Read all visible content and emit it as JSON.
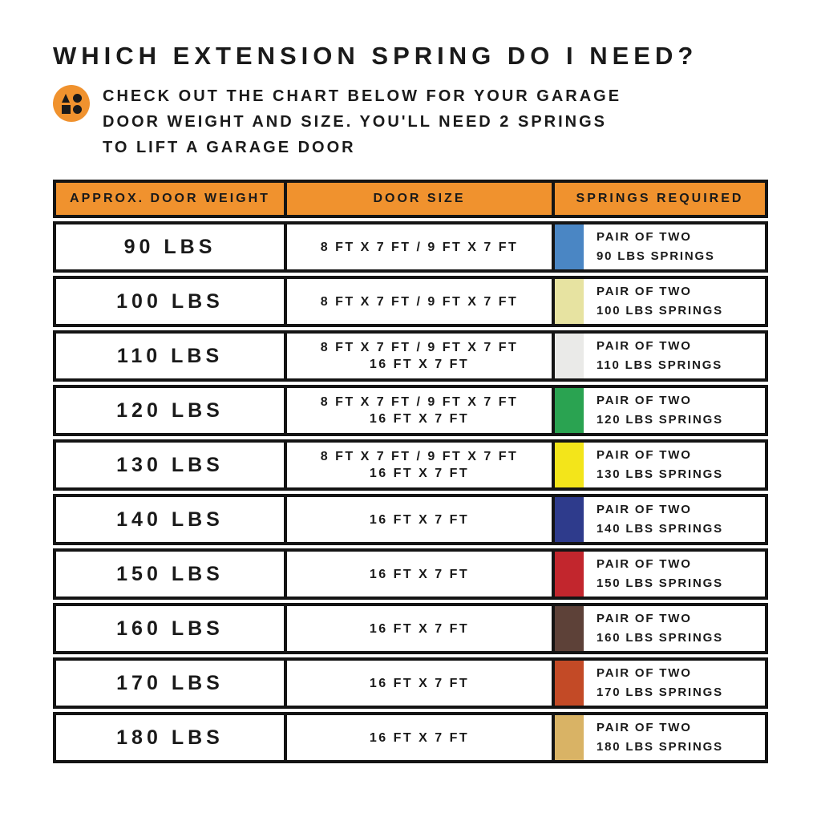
{
  "header": {
    "title": "WHICH EXTENSION SPRING DO I NEED?",
    "intro_lines": [
      "CHECK OUT THE CHART BELOW FOR YOUR GARAGE",
      "DOOR WEIGHT AND SIZE. YOU'LL NEED 2 SPRINGS",
      "TO LIFT A GARAGE DOOR"
    ],
    "icon": "shapes-icon"
  },
  "colors": {
    "accent_orange": "#F0922E",
    "border_black": "#141414",
    "text_black": "#1a1a1a"
  },
  "chart_data": {
    "type": "table",
    "title": "WHICH EXTENSION SPRING DO I NEED?",
    "columns": [
      "APPROX. DOOR WEIGHT",
      "DOOR SIZE",
      "SPRINGS REQUIRED"
    ],
    "rows": [
      {
        "weight": "90 LBS",
        "door_sizes": [
          "8 FT X 7 FT / 9 FT X 7 FT"
        ],
        "springs": [
          "PAIR OF TWO",
          "90 LBS SPRINGS"
        ],
        "swatch_color": "#4A86C4"
      },
      {
        "weight": "100 LBS",
        "door_sizes": [
          "8 FT X 7 FT / 9 FT X 7 FT"
        ],
        "springs": [
          "PAIR OF TWO",
          "100 LBS SPRINGS"
        ],
        "swatch_color": "#E7E3A1"
      },
      {
        "weight": "110 LBS",
        "door_sizes": [
          "8 FT X 7 FT / 9 FT X 7 FT",
          "16 FT X 7 FT"
        ],
        "springs": [
          "PAIR OF TWO",
          "110 LBS SPRINGS"
        ],
        "swatch_color": "#EAEAE8"
      },
      {
        "weight": "120 LBS",
        "door_sizes": [
          "8 FT X 7 FT / 9 FT X 7 FT",
          "16 FT X 7 FT"
        ],
        "springs": [
          "PAIR OF TWO",
          "120 LBS SPRINGS"
        ],
        "swatch_color": "#2AA351"
      },
      {
        "weight": "130 LBS",
        "door_sizes": [
          "8 FT X 7 FT / 9 FT X 7 FT",
          "16 FT X 7 FT"
        ],
        "springs": [
          "PAIR OF TWO",
          "130 LBS SPRINGS"
        ],
        "swatch_color": "#F3E51A"
      },
      {
        "weight": "140 LBS",
        "door_sizes": [
          "16 FT X 7 FT"
        ],
        "springs": [
          "PAIR OF TWO",
          "140 LBS SPRINGS"
        ],
        "swatch_color": "#2E3B8C"
      },
      {
        "weight": "150 LBS",
        "door_sizes": [
          "16 FT X 7 FT"
        ],
        "springs": [
          "PAIR OF TWO",
          "150 LBS SPRINGS"
        ],
        "swatch_color": "#C2262D"
      },
      {
        "weight": "160 LBS",
        "door_sizes": [
          "16 FT X 7 FT"
        ],
        "springs": [
          "PAIR OF TWO",
          "160 LBS SPRINGS"
        ],
        "swatch_color": "#5D4138"
      },
      {
        "weight": "170 LBS",
        "door_sizes": [
          "16 FT X 7 FT"
        ],
        "springs": [
          "PAIR OF TWO",
          "170 LBS SPRINGS"
        ],
        "swatch_color": "#C34A26"
      },
      {
        "weight": "180 LBS",
        "door_sizes": [
          "16 FT X 7 FT"
        ],
        "springs": [
          "PAIR OF TWO",
          "180 LBS SPRINGS"
        ],
        "swatch_color": "#D9B365"
      }
    ]
  }
}
